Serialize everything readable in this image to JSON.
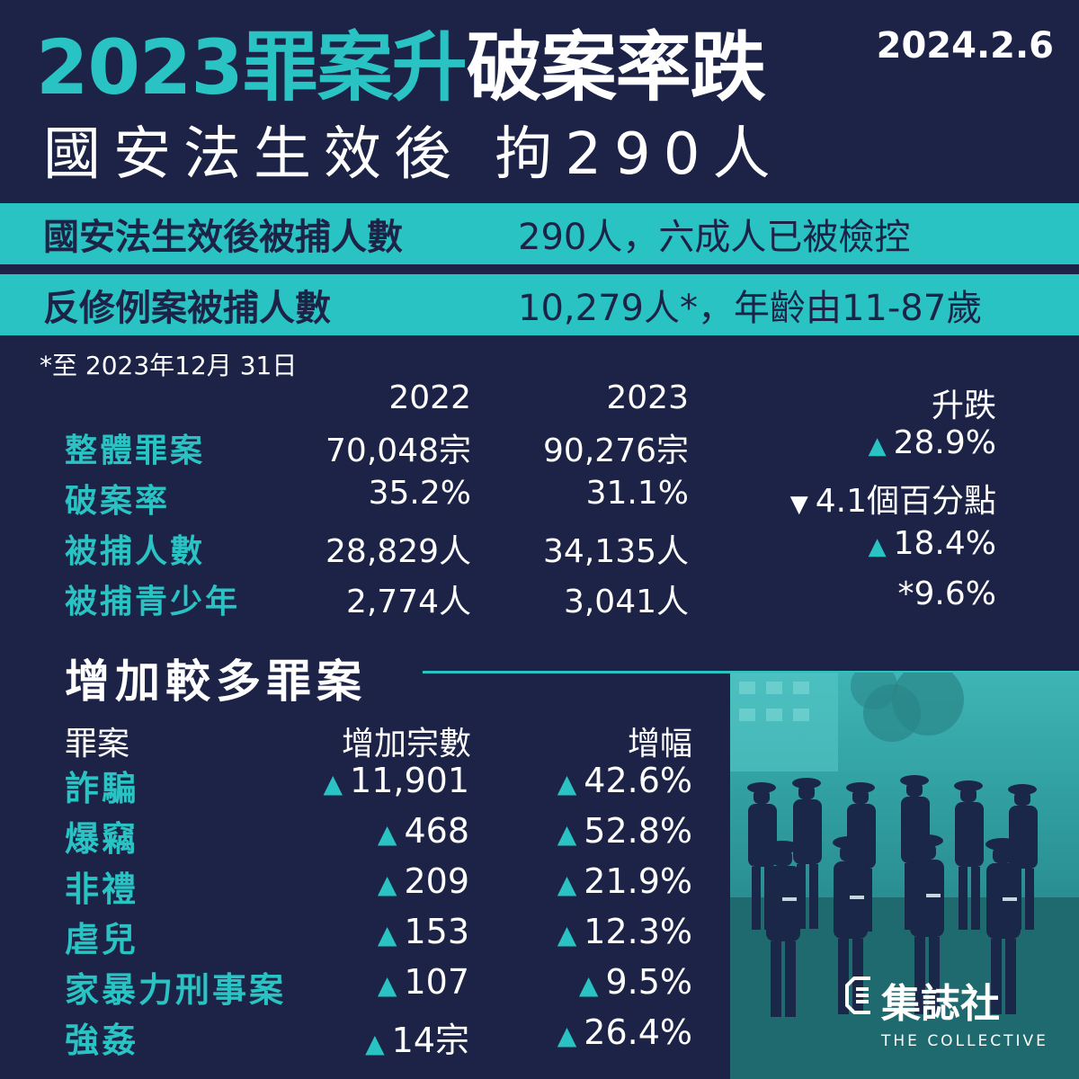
{
  "header": {
    "title_a": "2023罪案升",
    "title_b": "破案率跌",
    "date": "2024.2.6",
    "subtitle": "國安法生效後 拘290人"
  },
  "bands": [
    {
      "label": "國安法生效後被捕人數",
      "value": "290人，六成人已被檢控"
    },
    {
      "label": "反修例案被捕人數",
      "value": "10,279人*，年齡由11-87歲"
    }
  ],
  "note": "*至 2023年12月 31日",
  "stats": {
    "headers": [
      "2022",
      "2023",
      "升跌"
    ],
    "rows": [
      {
        "label": "整體罪案",
        "y2022": "70,048宗",
        "y2023": "90,276宗",
        "change": "28.9%",
        "dir": "up"
      },
      {
        "label": "破案率",
        "y2022": "35.2%",
        "y2023": "31.1%",
        "change": "4.1個百分點",
        "dir": "down"
      },
      {
        "label": "被捕人數",
        "y2022": "28,829人",
        "y2023": "34,135人",
        "change": "18.4%",
        "dir": "up"
      },
      {
        "label": "被捕青少年",
        "y2022": "2,774人",
        "y2023": "3,041人",
        "change": "*9.6%",
        "dir": "none"
      }
    ]
  },
  "crimes": {
    "section_title": "增加較多罪案",
    "headers": [
      "罪案",
      "增加宗數",
      "增幅"
    ],
    "rows": [
      {
        "label": "詐騙",
        "increase": "11,901",
        "pct": "42.6%"
      },
      {
        "label": "爆竊",
        "increase": "468",
        "pct": "52.8%"
      },
      {
        "label": "非禮",
        "increase": "209",
        "pct": "21.9%"
      },
      {
        "label": "虐兒",
        "increase": "153",
        "pct": "12.3%"
      },
      {
        "label": "家暴力刑事案",
        "increase": "107",
        "pct": "9.5%"
      },
      {
        "label": "強姦",
        "increase": "14宗",
        "pct": "26.4%"
      }
    ]
  },
  "brand": {
    "name": "集誌社",
    "english": "THE COLLECTIVE"
  },
  "colors": {
    "background": "#1d2346",
    "accent": "#2ac3c4",
    "text": "#ffffff"
  },
  "icons": [
    "up-triangle-icon",
    "down-triangle-icon",
    "collective-logo-icon"
  ]
}
